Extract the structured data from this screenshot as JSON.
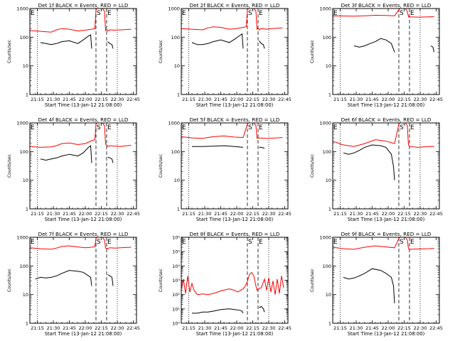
{
  "chart_data": {
    "type": "line",
    "xlabel": "Start Time (13-Jan-12 21:08:00)",
    "ylabel": "Counts/sec",
    "x_tick_labels": [
      "21:15",
      "21:30",
      "21:45",
      "22:00",
      "22:15",
      "22:30",
      "22:45"
    ],
    "x_ticks_minutes": [
      7,
      22,
      37,
      52,
      67,
      82,
      97
    ],
    "xlim_minutes": [
      0,
      100
    ],
    "dotted_lines_minutes": [
      7,
      82
    ],
    "dashed_lines_minutes": [
      62,
      72
    ],
    "markers": [
      "E",
      "S",
      "E"
    ],
    "marker_positions_minutes": [
      0,
      62,
      72
    ],
    "series_colors": {
      "events": "#000000",
      "lld": "#ff0000"
    },
    "panels": [
      {
        "title": "Det 1f BLACK = Events, RED = LLD",
        "y_scale": "log",
        "ylim": [
          1,
          1000
        ],
        "y_tick_labels": [
          "1000",
          "100",
          "10",
          "1"
        ],
        "y_tick_values": [
          1000,
          100,
          10,
          1
        ],
        "lld": {
          "x": [
            0,
            10,
            20,
            25,
            30,
            37,
            45,
            52,
            58,
            61,
            62,
            63,
            64,
            68,
            70,
            71,
            72,
            73,
            75,
            80,
            85,
            90,
            95
          ],
          "y": [
            170,
            160,
            150,
            180,
            200,
            190,
            165,
            175,
            190,
            200,
            900,
            1000,
            1000,
            1000,
            800,
            170,
            185,
            165,
            180,
            175,
            180,
            185,
            190
          ]
        },
        "events": [
          {
            "x": [
              10,
              15,
              20,
              25,
              30,
              37,
              45,
              50,
              55,
              57,
              58
            ],
            "y": [
              65,
              60,
              55,
              60,
              70,
              75,
              60,
              80,
              110,
              120,
              40
            ]
          },
          {
            "x": [
              73,
              75,
              77,
              78
            ],
            "y": [
              70,
              60,
              55,
              40
            ]
          }
        ]
      },
      {
        "title": "Det 2f BLACK = Events, RED = LLD",
        "y_scale": "log",
        "ylim": [
          1,
          1000
        ],
        "y_tick_labels": [
          "1000",
          "100",
          "10",
          "1"
        ],
        "y_tick_values": [
          1000,
          100,
          10,
          1
        ],
        "lld": {
          "x": [
            0,
            10,
            20,
            25,
            30,
            37,
            45,
            52,
            58,
            61,
            62,
            63,
            64,
            68,
            70,
            71,
            72,
            73,
            75,
            80,
            85,
            90,
            95
          ],
          "y": [
            200,
            190,
            180,
            210,
            230,
            220,
            190,
            200,
            220,
            230,
            900,
            1000,
            1000,
            1000,
            800,
            190,
            210,
            180,
            200,
            190,
            200,
            205,
            210
          ]
        },
        "events": [
          {
            "x": [
              10,
              15,
              20,
              25,
              30,
              37,
              45,
              50,
              55,
              57,
              58
            ],
            "y": [
              65,
              55,
              55,
              60,
              70,
              80,
              65,
              85,
              115,
              130,
              40
            ]
          },
          {
            "x": [
              73,
              75,
              77,
              78
            ],
            "y": [
              75,
              60,
              55,
              40
            ]
          }
        ]
      },
      {
        "title": "Det 3f BLACK = Events, RED = LLD",
        "y_scale": "log",
        "ylim": [
          1,
          1000
        ],
        "y_tick_labels": [
          "1000",
          "100",
          "10",
          "1"
        ],
        "y_tick_values": [
          1000,
          100,
          10,
          1
        ],
        "lld": {
          "x": [
            0,
            10,
            20,
            30,
            40,
            50,
            58,
            62,
            63,
            64,
            68,
            70,
            71,
            72,
            80,
            90,
            95
          ],
          "y": [
            560,
            550,
            540,
            560,
            580,
            570,
            560,
            900,
            1000,
            1000,
            1000,
            800,
            520,
            510,
            500,
            510,
            520
          ]
        },
        "events": [
          {
            "x": [
              20,
              25,
              30,
              35,
              40,
              45,
              50,
              55,
              58
            ],
            "y": [
              50,
              45,
              50,
              60,
              70,
              90,
              80,
              60,
              30
            ]
          },
          {
            "x": [
              92,
              94,
              95
            ],
            "y": [
              50,
              45,
              30
            ]
          }
        ]
      },
      {
        "title": "Det 4f BLACK = Events, RED = LLD",
        "y_scale": "log",
        "ylim": [
          1,
          1000
        ],
        "y_tick_labels": [
          "1000",
          "100",
          "10",
          "1"
        ],
        "y_tick_values": [
          1000,
          100,
          10,
          1
        ],
        "lld": {
          "x": [
            0,
            10,
            20,
            25,
            30,
            37,
            45,
            52,
            58,
            61,
            62,
            63,
            64,
            68,
            70,
            71,
            72,
            73,
            75,
            80,
            85,
            90,
            95
          ],
          "y": [
            150,
            140,
            145,
            160,
            190,
            200,
            175,
            190,
            240,
            260,
            900,
            1000,
            1000,
            1000,
            800,
            180,
            170,
            150,
            160,
            155,
            150,
            160,
            165
          ]
        },
        "events": [
          {
            "x": [
              10,
              15,
              20,
              25,
              30,
              37,
              45,
              50,
              55,
              57,
              58
            ],
            "y": [
              55,
              50,
              55,
              60,
              70,
              80,
              70,
              90,
              140,
              160,
              40
            ]
          },
          {
            "x": [
              73,
              75,
              77,
              78
            ],
            "y": [
              65,
              60,
              55,
              40
            ]
          }
        ]
      },
      {
        "title": "Det 5f BLACK = Events, RED = LLD",
        "y_scale": "log",
        "ylim": [
          1,
          1000
        ],
        "y_tick_labels": [
          "1000",
          "100",
          "10",
          "1"
        ],
        "y_tick_values": [
          1000,
          100,
          10,
          1
        ],
        "lld": {
          "x": [
            0,
            10,
            20,
            30,
            40,
            50,
            58,
            62,
            63,
            64,
            68,
            70,
            71,
            72,
            80,
            90,
            95
          ],
          "y": [
            330,
            300,
            290,
            330,
            350,
            320,
            310,
            900,
            1000,
            1000,
            1000,
            800,
            290,
            300,
            290,
            300,
            310
          ]
        },
        "events": [
          {
            "x": [
              10,
              20,
              30,
              40,
              50,
              58
            ],
            "y": [
              150,
              150,
              155,
              160,
              150,
              140
            ]
          },
          {
            "x": [
              73,
              75,
              77,
              78
            ],
            "y": [
              140,
              140,
              135,
              130
            ]
          }
        ]
      },
      {
        "title": "Det 6f BLACK = Events, RED = LLD",
        "y_scale": "log",
        "ylim": [
          1,
          1000
        ],
        "y_tick_labels": [
          "1000",
          "100",
          "10",
          "1"
        ],
        "y_tick_values": [
          1000,
          100,
          10,
          1
        ],
        "lld": {
          "x": [
            0,
            10,
            20,
            30,
            40,
            50,
            58,
            62,
            63,
            64,
            68,
            70,
            71,
            72,
            80,
            90,
            95
          ],
          "y": [
            230,
            170,
            150,
            190,
            260,
            230,
            190,
            900,
            1000,
            1000,
            1000,
            800,
            170,
            150,
            140,
            150,
            150
          ]
        },
        "events": [
          {
            "x": [
              10,
              15,
              20,
              25,
              30,
              37,
              45,
              50,
              55,
              57,
              58
            ],
            "y": [
              90,
              80,
              90,
              110,
              140,
              170,
              160,
              140,
              80,
              30,
              10
            ]
          }
        ]
      },
      {
        "title": "Det 7f BLACK = Events, RED = LLD",
        "y_scale": "log",
        "ylim": [
          1,
          1000
        ],
        "y_tick_labels": [
          "1000",
          "100",
          "10",
          "1"
        ],
        "y_tick_values": [
          1000,
          100,
          10,
          1
        ],
        "lld": {
          "x": [
            0,
            10,
            20,
            25,
            30,
            37,
            45,
            52,
            58,
            61,
            62,
            63,
            64,
            68,
            70,
            71,
            72,
            73,
            75,
            80,
            85,
            90,
            95
          ],
          "y": [
            430,
            400,
            380,
            420,
            480,
            500,
            460,
            430,
            450,
            470,
            900,
            1000,
            1000,
            1000,
            800,
            420,
            410,
            400,
            430,
            420,
            430,
            440,
            450
          ]
        },
        "events": [
          {
            "x": [
              5,
              10,
              15,
              20,
              25,
              30,
              37,
              45,
              50,
              55,
              57,
              58
            ],
            "y": [
              35,
              40,
              38,
              40,
              45,
              55,
              70,
              65,
              60,
              45,
              40,
              20
            ]
          },
          {
            "x": [
              73,
              75,
              77,
              78
            ],
            "y": [
              50,
              45,
              40,
              20
            ]
          }
        ]
      },
      {
        "title": "Det 8f BLACK = Events, RED = LLD",
        "y_scale": "log",
        "ylim": [
          1,
          1000000
        ],
        "y_tick_labels": [
          "10⁶",
          "10⁵",
          "10⁴",
          "10³",
          "10²",
          "10¹",
          "10⁰"
        ],
        "y_tick_values": [
          1000000,
          100000,
          10000,
          1000,
          100,
          10,
          1
        ],
        "lld": {
          "x": [
            0,
            2,
            4,
            6,
            8,
            10,
            12,
            15,
            20,
            25,
            30,
            37,
            45,
            50,
            53,
            58,
            60,
            62,
            63,
            64,
            66,
            68,
            70,
            71,
            72,
            75,
            78,
            80,
            82,
            84,
            86,
            88,
            90,
            92,
            94,
            96
          ],
          "y": [
            250,
            1200,
            120,
            2000,
            150,
            600,
            200,
            100,
            110,
            100,
            120,
            180,
            250,
            200,
            150,
            250,
            400,
            800,
            1500,
            2500,
            3500,
            2000,
            400,
            200,
            250,
            300,
            1200,
            200,
            1500,
            150,
            900,
            100,
            1200,
            120,
            2000,
            300
          ]
        },
        "events": [
          {
            "x": [
              10,
              15,
              20,
              25,
              30,
              37,
              45,
              50,
              55,
              57,
              58
            ],
            "y": [
              5,
              5,
              6,
              6,
              7,
              9,
              10,
              9,
              8,
              7,
              5
            ]
          },
          {
            "x": [
              73,
              75,
              77,
              78
            ],
            "y": [
              12,
              15,
              10,
              6
            ]
          }
        ]
      },
      {
        "title": "Det 9f BLACK = Events, RED = LLD",
        "y_scale": "log",
        "ylim": [
          1,
          1000
        ],
        "y_tick_labels": [
          "1000",
          "100",
          "10",
          "1"
        ],
        "y_tick_values": [
          1000,
          100,
          10,
          1
        ],
        "lld": {
          "x": [
            0,
            10,
            20,
            30,
            40,
            50,
            58,
            62,
            63,
            64,
            68,
            70,
            71,
            72,
            80,
            90,
            95
          ],
          "y": [
            450,
            400,
            380,
            450,
            500,
            460,
            430,
            900,
            1000,
            1000,
            1000,
            800,
            400,
            380,
            390,
            400,
            410
          ]
        },
        "events": [
          {
            "x": [
              10,
              15,
              20,
              25,
              30,
              37,
              45,
              50,
              55,
              57,
              58
            ],
            "y": [
              40,
              35,
              38,
              45,
              55,
              80,
              70,
              55,
              40,
              20,
              5
            ]
          }
        ]
      }
    ]
  }
}
